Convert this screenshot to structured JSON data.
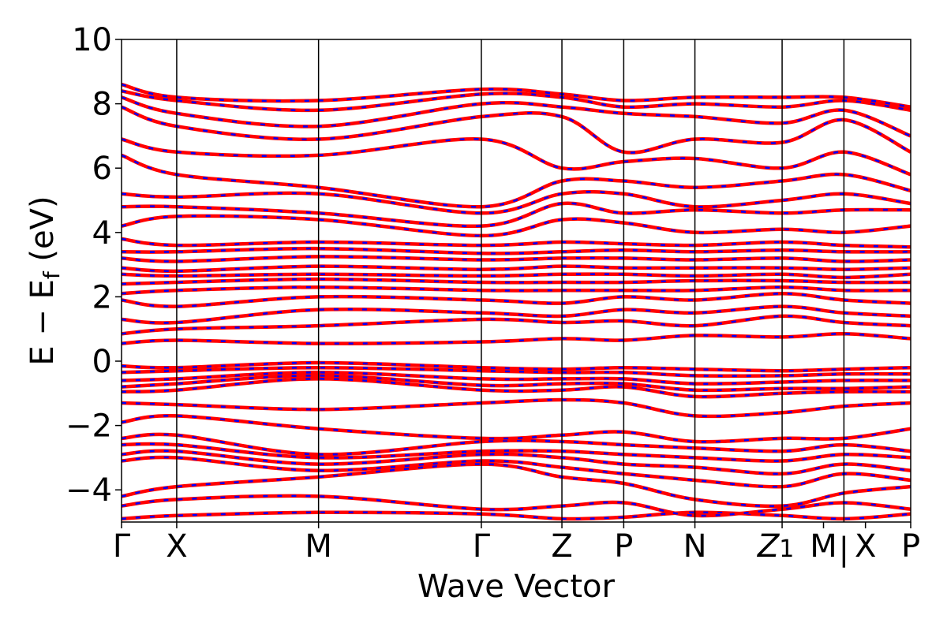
{
  "chart_data": {
    "type": "line",
    "title": "",
    "xlabel": "Wave Vector",
    "ylabel": {
      "main": "E − E",
      "sub": "f",
      "unit": " (eV)"
    },
    "ylim": [
      -5,
      10
    ],
    "yticks": [
      -4,
      -2,
      0,
      2,
      4,
      6,
      8,
      10
    ],
    "xlim": [
      0,
      14.3
    ],
    "kpoints": [
      {
        "label": "Γ",
        "x": 0.0
      },
      {
        "label": "X",
        "x": 1.0
      },
      {
        "label": "M",
        "x": 3.57
      },
      {
        "label": "Γ",
        "x": 6.52
      },
      {
        "label": "Z",
        "x": 7.98
      },
      {
        "label": "P",
        "x": 9.1
      },
      {
        "label": "N",
        "x": 10.39
      },
      {
        "label": "Z",
        "sub": "1",
        "x": 11.97
      },
      {
        "label": "M",
        "x": 12.72
      },
      {
        "label": "|",
        "x": 13.09
      },
      {
        "label": "X",
        "x": 13.48
      },
      {
        "label": "P",
        "x": 14.3
      }
    ],
    "vlines": [
      1.0,
      3.57,
      6.52,
      7.98,
      9.1,
      10.39,
      11.97,
      13.09
    ],
    "grid": false,
    "legend": "none",
    "series_styles": {
      "line1": {
        "color": "#ff0000",
        "style": "solid"
      },
      "line2": {
        "color": "#0000ff",
        "style": "dashed"
      }
    },
    "segments": [
      [
        0.0,
        1.0
      ],
      [
        1.0,
        3.57
      ],
      [
        3.57,
        6.52
      ],
      [
        6.52,
        7.98
      ],
      [
        7.98,
        9.1
      ],
      [
        9.1,
        10.39
      ],
      [
        10.39,
        11.97
      ],
      [
        11.97,
        13.09
      ],
      [
        13.09,
        14.3
      ]
    ],
    "bands": [
      [
        -4.9,
        -4.8,
        -4.7,
        -4.75,
        -4.9,
        -4.85,
        -4.7,
        -4.8,
        -4.9,
        -4.75
      ],
      [
        -4.5,
        -4.3,
        -4.2,
        -4.6,
        -4.5,
        -4.4,
        -4.8,
        -4.6,
        -4.4,
        -4.6
      ],
      [
        -4.2,
        -3.9,
        -3.6,
        -3.2,
        -3.6,
        -3.8,
        -4.3,
        -4.5,
        -4.1,
        -3.9
      ],
      [
        -3.1,
        -3.0,
        -3.4,
        -3.1,
        -3.3,
        -3.5,
        -3.7,
        -3.9,
        -3.5,
        -3.7
      ],
      [
        -2.9,
        -2.8,
        -3.2,
        -2.9,
        -3.0,
        -3.2,
        -3.3,
        -3.5,
        -3.2,
        -3.4
      ],
      [
        -2.6,
        -2.6,
        -3.0,
        -2.8,
        -2.8,
        -2.9,
        -3.0,
        -3.1,
        -2.9,
        -3.0
      ],
      [
        -2.4,
        -2.3,
        -2.9,
        -2.5,
        -2.5,
        -2.6,
        -2.7,
        -2.8,
        -2.6,
        -2.8
      ],
      [
        -1.9,
        -1.7,
        -2.1,
        -2.4,
        -2.3,
        -2.2,
        -2.5,
        -2.4,
        -2.4,
        -2.1
      ],
      [
        -1.3,
        -1.35,
        -1.5,
        -1.3,
        -1.2,
        -1.3,
        -1.7,
        -1.6,
        -1.4,
        -1.3
      ],
      [
        -0.95,
        -0.9,
        -0.55,
        -0.9,
        -0.9,
        -0.8,
        -1.1,
        -1.0,
        -0.95,
        -0.95
      ],
      [
        -0.8,
        -0.7,
        -0.45,
        -0.75,
        -0.7,
        -0.7,
        -0.9,
        -0.85,
        -0.85,
        -0.8
      ],
      [
        -0.6,
        -0.55,
        -0.35,
        -0.55,
        -0.55,
        -0.55,
        -0.7,
        -0.65,
        -0.6,
        -0.6
      ],
      [
        -0.35,
        -0.3,
        -0.2,
        -0.3,
        -0.35,
        -0.35,
        -0.45,
        -0.45,
        -0.4,
        -0.4
      ],
      [
        -0.15,
        -0.2,
        -0.05,
        -0.2,
        -0.25,
        -0.2,
        -0.25,
        -0.3,
        -0.25,
        -0.2
      ],
      [
        0.55,
        0.65,
        0.55,
        0.6,
        0.7,
        0.65,
        0.8,
        0.75,
        0.85,
        0.7
      ],
      [
        0.85,
        1.0,
        1.1,
        1.3,
        1.2,
        1.25,
        1.1,
        1.4,
        1.2,
        1.1
      ],
      [
        1.3,
        1.2,
        1.6,
        1.5,
        1.4,
        1.6,
        1.5,
        1.7,
        1.5,
        1.4
      ],
      [
        1.9,
        1.7,
        2.0,
        1.9,
        1.8,
        2.0,
        1.9,
        2.1,
        1.9,
        1.8
      ],
      [
        2.1,
        2.2,
        2.3,
        2.2,
        2.2,
        2.2,
        2.2,
        2.3,
        2.2,
        2.2
      ],
      [
        2.4,
        2.45,
        2.55,
        2.45,
        2.45,
        2.45,
        2.5,
        2.5,
        2.45,
        2.45
      ],
      [
        2.7,
        2.65,
        2.7,
        2.65,
        2.7,
        2.7,
        2.65,
        2.7,
        2.6,
        2.7
      ],
      [
        2.9,
        2.8,
        2.95,
        2.85,
        2.95,
        2.9,
        2.9,
        2.9,
        2.85,
        2.9
      ],
      [
        3.2,
        3.1,
        3.25,
        3.15,
        3.2,
        3.2,
        3.15,
        3.2,
        3.1,
        3.15
      ],
      [
        3.4,
        3.4,
        3.5,
        3.35,
        3.4,
        3.45,
        3.4,
        3.45,
        3.4,
        3.4
      ],
      [
        3.8,
        3.6,
        3.7,
        3.6,
        3.7,
        3.65,
        3.6,
        3.7,
        3.6,
        3.55
      ],
      [
        4.2,
        4.5,
        4.4,
        3.9,
        4.4,
        4.3,
        4.0,
        4.1,
        4.0,
        4.2
      ],
      [
        4.8,
        4.8,
        4.6,
        4.2,
        4.9,
        4.6,
        4.7,
        4.6,
        4.7,
        4.7
      ],
      [
        5.2,
        5.1,
        5.2,
        4.6,
        5.2,
        5.2,
        4.8,
        5.0,
        5.2,
        4.9
      ],
      [
        6.4,
        5.8,
        5.4,
        4.8,
        5.6,
        5.6,
        5.4,
        5.6,
        5.8,
        5.3
      ],
      [
        6.9,
        6.5,
        6.4,
        6.9,
        6.0,
        6.2,
        6.3,
        6.0,
        6.5,
        5.8
      ],
      [
        7.9,
        7.3,
        6.9,
        7.6,
        7.6,
        6.5,
        6.9,
        6.8,
        7.5,
        6.5
      ],
      [
        8.2,
        7.7,
        7.3,
        8.0,
        7.9,
        7.7,
        7.6,
        7.4,
        7.8,
        7.0
      ],
      [
        8.4,
        8.1,
        7.8,
        8.3,
        8.2,
        7.9,
        8.0,
        7.9,
        8.1,
        7.8
      ],
      [
        8.6,
        8.2,
        8.1,
        8.45,
        8.3,
        8.1,
        8.2,
        8.2,
        8.2,
        7.9
      ]
    ]
  }
}
